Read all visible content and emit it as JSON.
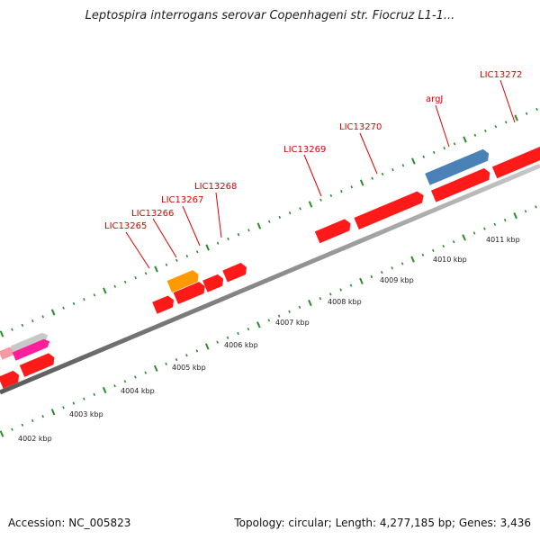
{
  "title": "Leptospira interrogans serovar Copenhageni str. Fiocruz L1-1...",
  "footer": {
    "accession": "Accession: NC_005823",
    "summary": "Topology: circular; Length: 4,277,185 bp; Genes: 3,436"
  },
  "colors": {
    "gene": "#ff1a1a",
    "backbone": "#8a8a8a",
    "tick": "#2e8b2e",
    "label": "#e00000",
    "orange_gene": "#ff9900",
    "blue_gene": "#4a82b8",
    "pink_gene": "#ff1f9a",
    "light_pink_gene": "#f49aa0",
    "gray_gene": "#c8c8c8"
  },
  "scale_labels": [
    "4002 kbp",
    "4003 kbp",
    "4004 kbp",
    "4005 kbp",
    "4006 kbp",
    "4007 kbp",
    "4008 kbp",
    "4009 kbp",
    "4010 kbp",
    "4011 kbp"
  ],
  "gene_labels": [
    {
      "name": "LIC13265"
    },
    {
      "name": "LIC13266"
    },
    {
      "name": "LIC13267"
    },
    {
      "name": "LIC13268"
    },
    {
      "name": "LIC13269"
    },
    {
      "name": "LIC13270"
    },
    {
      "name": "argJ"
    },
    {
      "name": "LIC13272"
    }
  ]
}
